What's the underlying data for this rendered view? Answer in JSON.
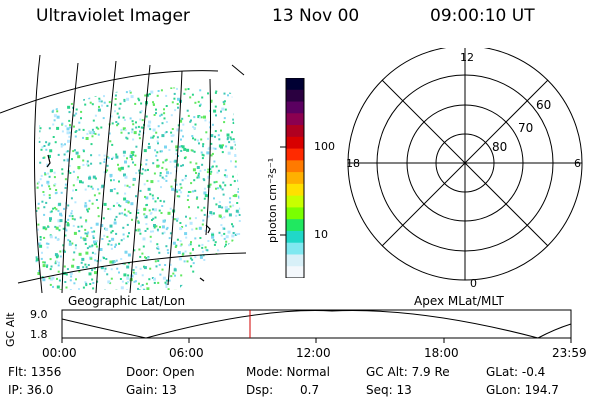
{
  "header": {
    "instrument": "Ultraviolet Imager",
    "date": "13 Nov 00",
    "time": "09:00:10 UT"
  },
  "colorbar": {
    "unit_label": "photon cm⁻²s⁻¹",
    "ticks": [
      "100",
      "10"
    ],
    "colors": [
      "#000033",
      "#2a0040",
      "#5a0060",
      "#8b0050",
      "#b00020",
      "#d80000",
      "#ff2a00",
      "#ff7a00",
      "#ffb000",
      "#ffe000",
      "#c8ff00",
      "#7aff00",
      "#20e860",
      "#20d8c8",
      "#80e8f0",
      "#d8f0f8",
      "#f4f8fc"
    ]
  },
  "geo_map": {
    "caption": "Geographic Lat/Lon",
    "dot_colors": [
      "#2bd48a",
      "#5fe85f",
      "#7ad6f0",
      "#b8e8ff",
      "#3cc8b4"
    ]
  },
  "polar_plot": {
    "caption": "Apex MLat/MLT",
    "mlt_labels": {
      "top": "12",
      "left": "18",
      "right": "6",
      "bottom": "0"
    },
    "mlat_labels": [
      "60",
      "70",
      "80"
    ]
  },
  "altitude_plot": {
    "ylabel": "GC Alt",
    "y_ticks": [
      "9.0",
      "1.8"
    ],
    "x_ticks": [
      "00:00",
      "06:00",
      "12:00",
      "18:00",
      "23:59"
    ],
    "marker_color": "#d00000"
  },
  "info": {
    "flt": "Flt: 1356",
    "ip": "IP: 36.0",
    "door": "Door: Open",
    "gain": "Gain: 13",
    "mode": "Mode: Normal",
    "dsp_label": "Dsp:",
    "dsp_value": "0.7",
    "gc_alt": "GC Alt: 7.9 Re",
    "seq": "Seq: 13",
    "glat": "GLat:  -0.4",
    "glon": "GLon: 194.7"
  }
}
